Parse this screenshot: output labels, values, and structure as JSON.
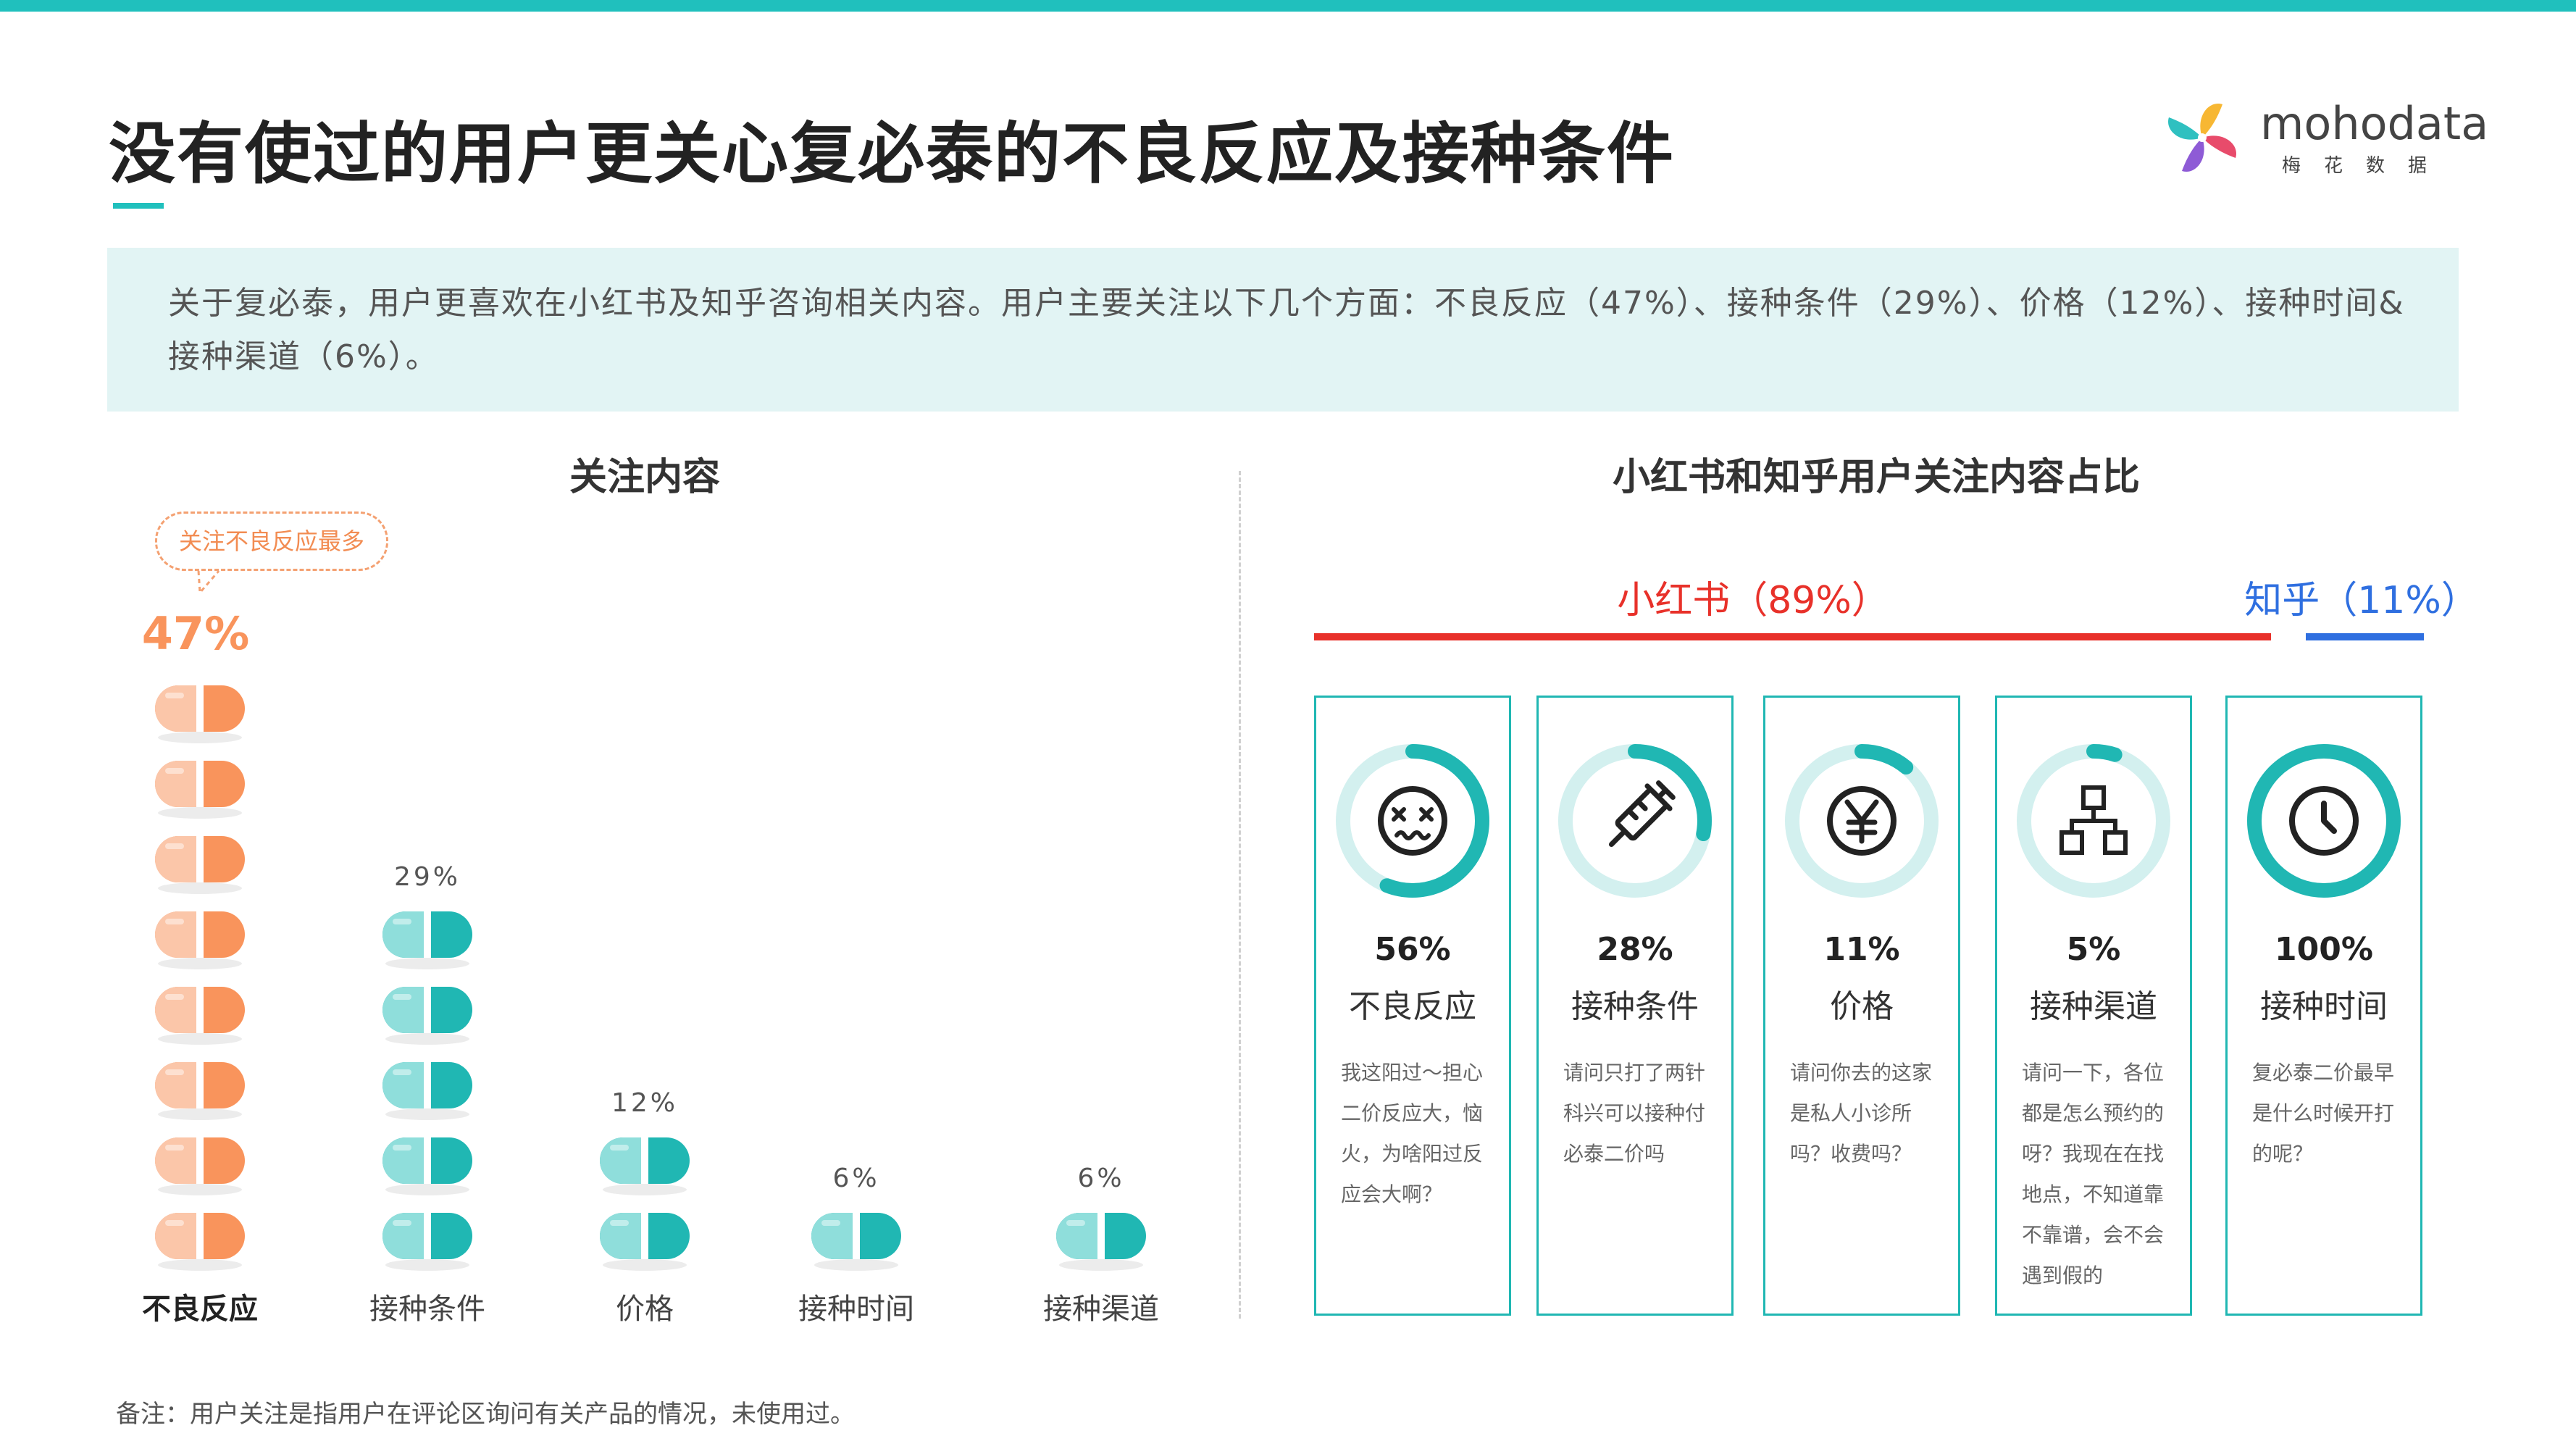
{
  "page": {
    "title": "没有使过的用户更关心复必泰的不良反应及接种条件",
    "summary": "关于复必泰，用户更喜欢在小红书及知乎咨询相关内容。用户主要关注以下几个方面：不良反应（47%）、接种条件（29%）、价格（12%）、接种时间&接种渠道（6%）。",
    "footnote": "备注：用户关注是指用户在评论区询问有关产品的情况，未使用过。",
    "colors": {
      "accent": "#20c0bd",
      "orange": "#f9945c",
      "teal": "#20b7b3",
      "red": "#e8312a",
      "blue": "#2f6fe0"
    }
  },
  "logo": {
    "word": "mohodata",
    "sub": "梅花数据"
  },
  "chart_data": [
    {
      "type": "bar",
      "title": "关注内容",
      "categories": [
        "不良反应",
        "接种条件",
        "价格",
        "接种时间",
        "接种渠道"
      ],
      "values": [
        47,
        29,
        12,
        6,
        6
      ],
      "value_labels": [
        "47%",
        "29%",
        "12%",
        "6%",
        "6%"
      ],
      "unit": "%",
      "annotation": "关注不良反应最多",
      "highlight": "不良反应"
    },
    {
      "type": "bar",
      "title": "小红书和知乎用户关注内容占比",
      "platforms": [
        {
          "name": "小红书",
          "label": "小红书（89%）",
          "share": 89,
          "color": "#e8312a"
        },
        {
          "name": "知乎",
          "label": "知乎（11%）",
          "share": 11,
          "color": "#2f6fe0"
        }
      ],
      "categories": [
        "不良反应",
        "接种条件",
        "价格",
        "接种渠道",
        "接种时间"
      ],
      "values": [
        56,
        28,
        11,
        5,
        100
      ],
      "value_labels": [
        "56%",
        "28%",
        "11%",
        "5%",
        "100%"
      ],
      "icons": [
        "dizzy-face-icon",
        "syringe-icon",
        "yuan-coin-icon",
        "network-tree-icon",
        "clock-icon"
      ],
      "quotes": [
        "我这阳过～担心二价反应大，恼火，为啥阳过反应会大啊？",
        "请问只打了两针科兴可以接种付必泰二价吗",
        "请问你去的这家是私人小诊所吗？收费吗？",
        "请问一下，各位都是怎么预约的呀？我现在在找地点，不知道靠不靠谱，会不会遇到假的",
        "复必泰二价最早是什么时候开打的呢？"
      ]
    }
  ]
}
